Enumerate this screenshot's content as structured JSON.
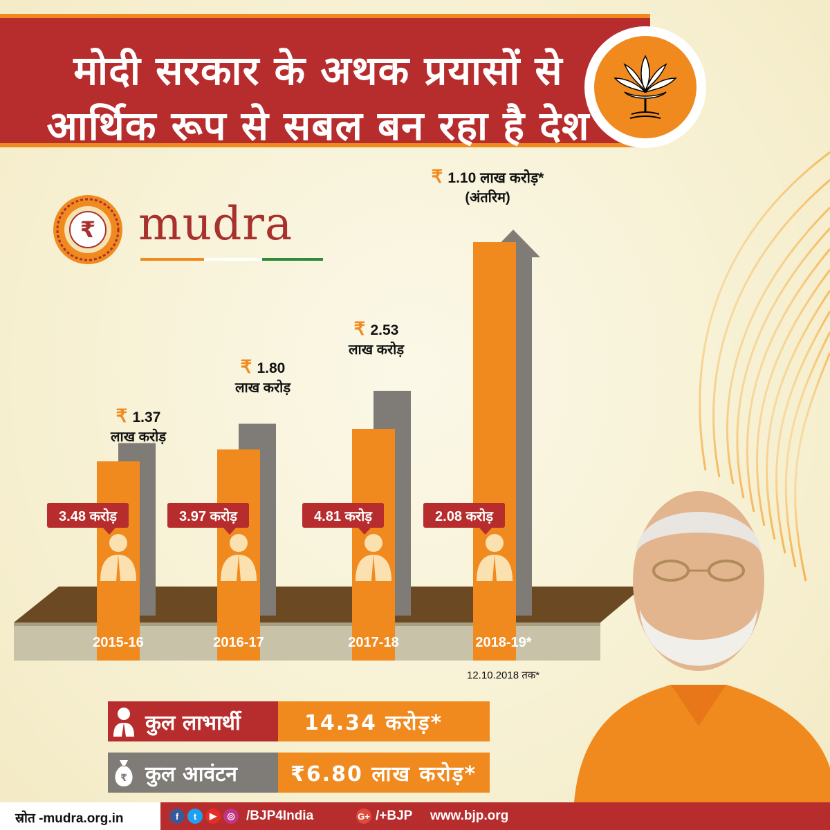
{
  "header": {
    "title_line1": "मोदी सरकार के अथक प्रयासों से",
    "title_line2": "आर्थिक रूप से सबल बन रहा है देश",
    "logo": "bjp-lotus-icon"
  },
  "mudra_logo": {
    "word": "mudra",
    "icon": "rupee-mandala-icon"
  },
  "colors": {
    "maroon": "#b72c2d",
    "saffron": "#f08a1f",
    "grey": "#7f7b76",
    "ground": "#6b4a23"
  },
  "chart_data": {
    "type": "bar",
    "categories": [
      "2015-16",
      "2016-17",
      "2017-18",
      "2018-19*"
    ],
    "series": [
      {
        "values": [
          3.48,
          3.97,
          4.81,
          2.08
        ],
        "unit": "करोड़"
      },
      {
        "values": [
          1.37,
          1.8,
          2.53,
          1.1
        ],
        "unit": "लाख करोड़"
      }
    ],
    "beneficiary_labels": [
      "3.48 करोड़",
      "3.97 करोड़",
      "4.81 करोड़",
      "2.08 करोड़"
    ],
    "amount_labels": [
      {
        "rs": "₹",
        "num": "1.37",
        "unit": "लाख करोड़"
      },
      {
        "rs": "₹",
        "num": "1.80",
        "unit": "लाख करोड़"
      },
      {
        "rs": "₹",
        "num": "2.53",
        "unit": "लाख करोड़"
      },
      {
        "rs": "₹",
        "num": "1.10 लाख करोड़*",
        "unit": "(अंतरिम)"
      }
    ],
    "date_note": "12.10.2018 तक*"
  },
  "summary": {
    "beneficiaries_label": "कुल लाभार्थी",
    "beneficiaries_value": "14.34 करोड़*",
    "allocation_label": "कुल आवंटन",
    "allocation_value": "₹6.80 लाख करोड़*"
  },
  "footer": {
    "source": "स्रोत -mudra.org.in",
    "social_handle": "/BJP4India",
    "gplus_handle": "/+BJP",
    "website": "www.bjp.org",
    "icons": [
      "facebook-icon",
      "twitter-icon",
      "youtube-icon",
      "instagram-icon",
      "google-plus-icon"
    ]
  }
}
